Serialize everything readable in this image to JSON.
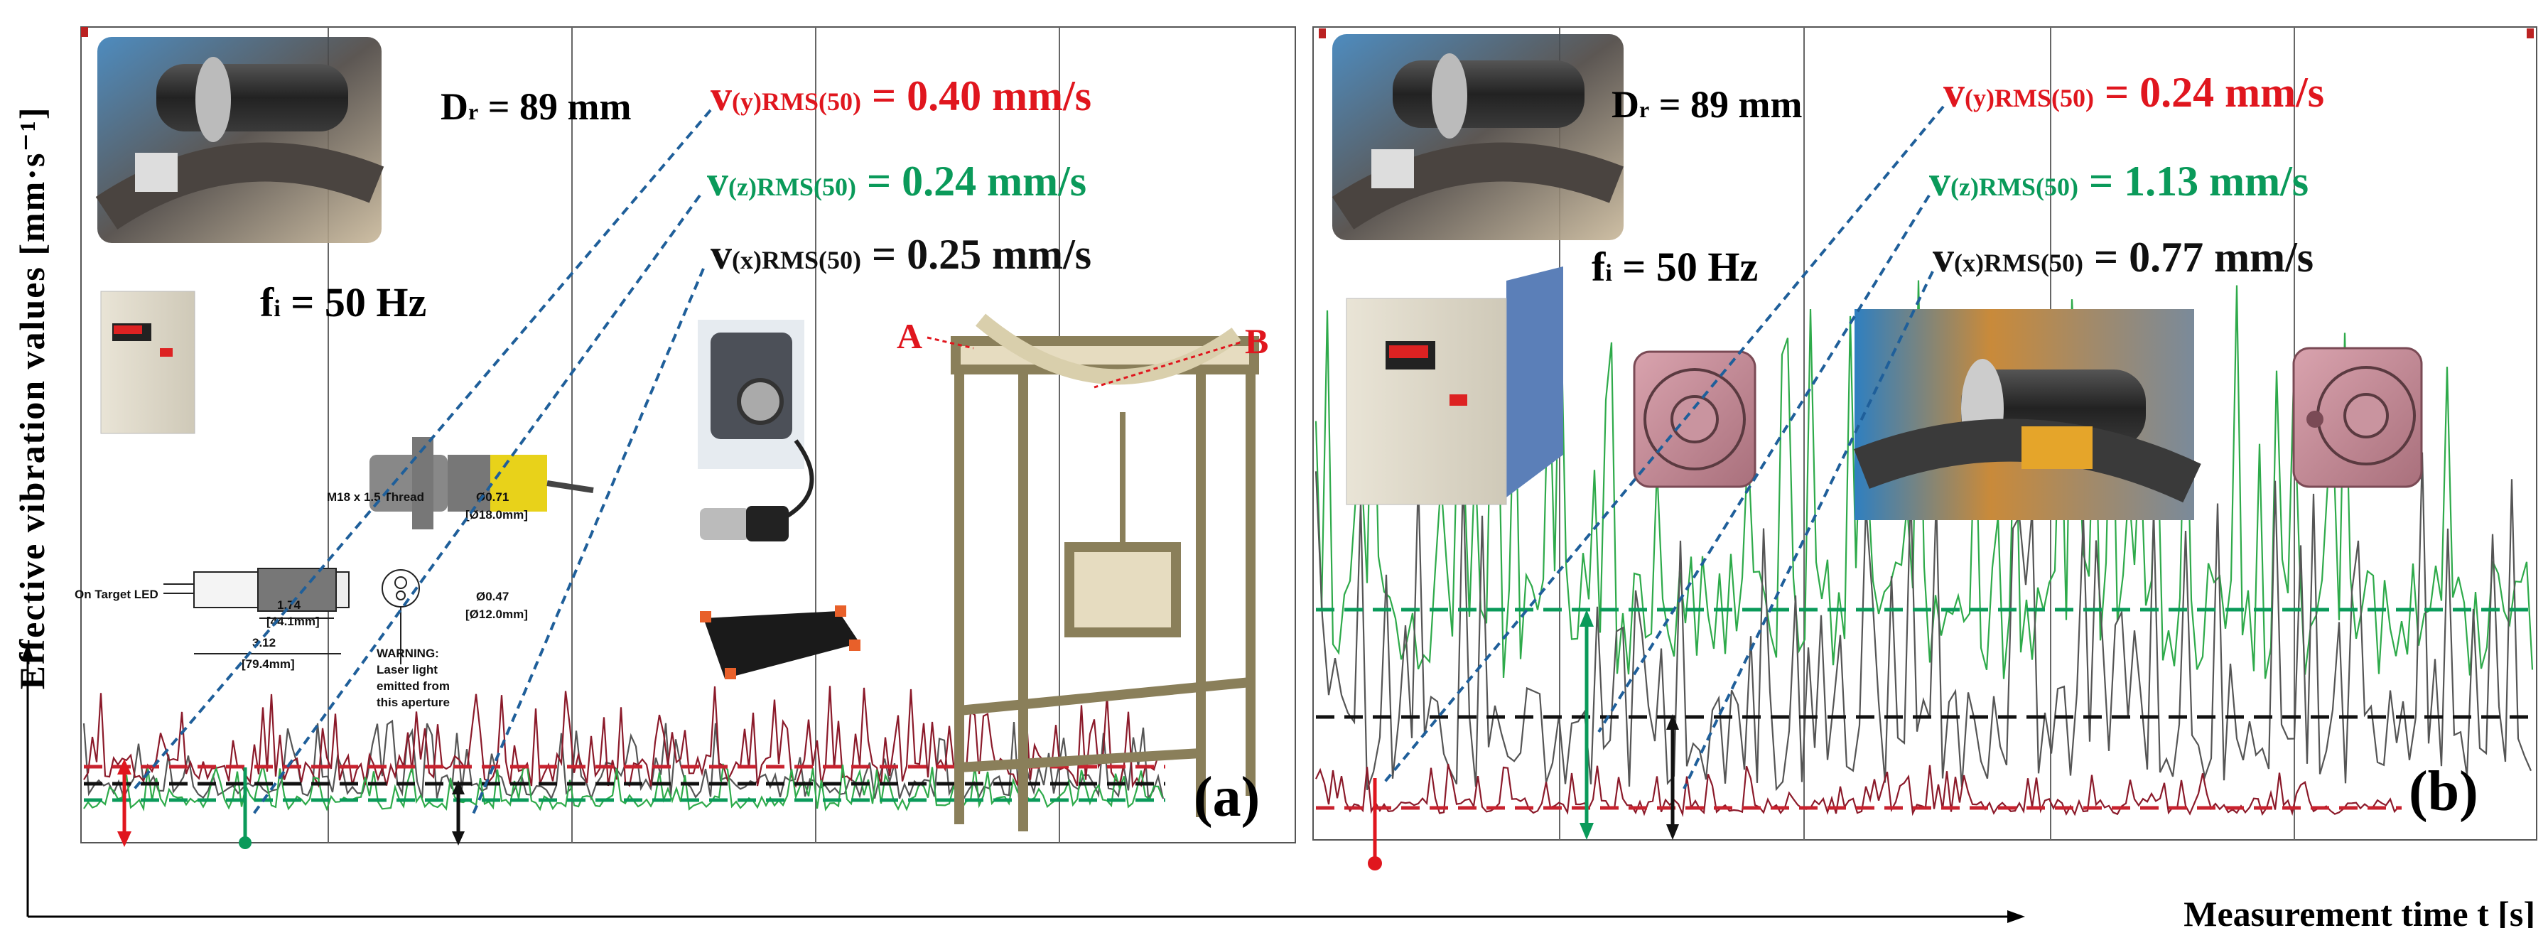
{
  "figure": {
    "ylabel": "Effective vibration values [mm·s⁻¹]",
    "xlabel": "Measurement time t [s]"
  },
  "colors": {
    "y": "#e0161e",
    "z": "#0a9a5a",
    "x": "#111111",
    "leader": "#1f5f9a",
    "trace_y": "#8b1a2a",
    "trace_z": "#2eaa4a",
    "trace_x": "#555555"
  },
  "panels": [
    {
      "label": "(a)",
      "dr": {
        "sym": "D",
        "sub": "r",
        "rest": " = 89 mm"
      },
      "fi": {
        "sym": "f",
        "sub": "i",
        "rest": " = 50 Hz"
      },
      "rms": [
        {
          "axis": "y",
          "v": "v",
          "sub": "(y)RMS(50)",
          "value": " = 0.40 mm/s"
        },
        {
          "axis": "z",
          "v": "v",
          "sub": "(z)RMS(50)",
          "value": " = 0.24 mm/s"
        },
        {
          "axis": "x",
          "v": "v",
          "sub": "(x)RMS(50)",
          "value": " = 0.25 mm/s"
        }
      ],
      "sensor_drawing": {
        "thread": "M18 x 1.5 Thread",
        "led": "On Target LED",
        "dim1": "1.74",
        "dim1mm": "[44.1mm]",
        "dim2": "3.12",
        "dim2mm": "[79.4mm]",
        "d1": "Ø0.71",
        "d1mm": "[Ø18.0mm]",
        "d2": "Ø0.47",
        "d2mm": "[Ø12.0mm]",
        "warning": [
          "WARNING:",
          "Laser light",
          "emitted from",
          "this aperture"
        ]
      },
      "points": {
        "a": "A",
        "b": "B"
      }
    },
    {
      "label": "(b)",
      "dr": {
        "sym": "D",
        "sub": "r",
        "rest": " = 89 mm"
      },
      "fi": {
        "sym": "f",
        "sub": "i",
        "rest": " = 50 Hz"
      },
      "rms": [
        {
          "axis": "y",
          "v": "v",
          "sub": "(y)RMS(50)",
          "value": " = 0.24 mm/s"
        },
        {
          "axis": "z",
          "v": "v",
          "sub": "(z)RMS(50)",
          "value": " = 1.13 mm/s"
        },
        {
          "axis": "x",
          "v": "v",
          "sub": "(x)RMS(50)",
          "value": " = 0.77 mm/s"
        }
      ]
    }
  ],
  "chart_data": [
    {
      "type": "line",
      "title": "(a)",
      "xlabel": "Measurement time t [s]",
      "ylabel": "Effective vibration values [mm·s⁻¹]",
      "grid": true,
      "rms_lines": [
        {
          "name": "v(y)RMS(50)",
          "value": 0.4,
          "unit": "mm/s",
          "color": "#e0161e"
        },
        {
          "name": "v(z)RMS(50)",
          "value": 0.24,
          "unit": "mm/s",
          "color": "#0a9a5a"
        },
        {
          "name": "v(x)RMS(50)",
          "value": 0.25,
          "unit": "mm/s",
          "color": "#111111"
        }
      ],
      "fi_hz": 50,
      "dr_mm": 89
    },
    {
      "type": "line",
      "title": "(b)",
      "xlabel": "Measurement time t [s]",
      "ylabel": "Effective vibration values [mm·s⁻¹]",
      "grid": true,
      "rms_lines": [
        {
          "name": "v(y)RMS(50)",
          "value": 0.24,
          "unit": "mm/s",
          "color": "#e0161e"
        },
        {
          "name": "v(z)RMS(50)",
          "value": 1.13,
          "unit": "mm/s",
          "color": "#0a9a5a"
        },
        {
          "name": "v(x)RMS(50)",
          "value": 0.77,
          "unit": "mm/s",
          "color": "#111111"
        }
      ],
      "fi_hz": 50,
      "dr_mm": 89
    }
  ]
}
